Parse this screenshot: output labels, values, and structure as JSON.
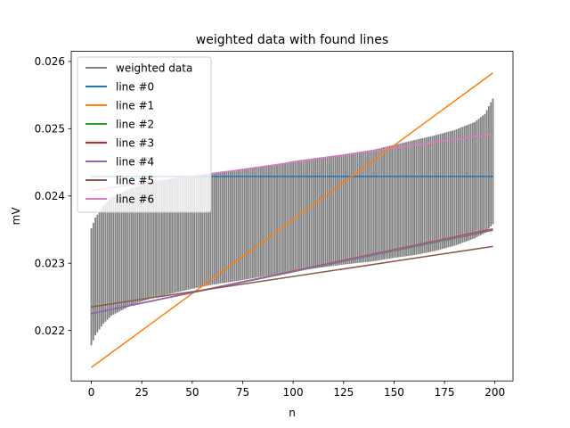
{
  "chart_data": {
    "type": "line",
    "title": "weighted data with found lines",
    "xlabel": "n",
    "ylabel": "mV",
    "xlim": [
      -9.95,
      208.95
    ],
    "ylim": [
      0.02125,
      0.02615
    ],
    "xticks": [
      0,
      25,
      50,
      75,
      100,
      125,
      150,
      175,
      200
    ],
    "yticks": [
      0.022,
      0.023,
      0.024,
      0.025,
      0.026
    ],
    "ytick_labels": [
      "0.022",
      "0.023",
      "0.024",
      "0.025",
      "0.026"
    ],
    "grid": false,
    "legend_position": "upper-left",
    "weighted_data": {
      "name": "weighted data",
      "color": "#808080",
      "n_points": 200,
      "lower": [
        [
          0,
          0.02178
        ],
        [
          2,
          0.02193
        ],
        [
          6,
          0.0221
        ],
        [
          10,
          0.02222
        ],
        [
          20,
          0.02238
        ],
        [
          30,
          0.02248
        ],
        [
          40,
          0.02255
        ],
        [
          50,
          0.02262
        ],
        [
          60,
          0.02268
        ],
        [
          75,
          0.02275
        ],
        [
          90,
          0.02283
        ],
        [
          100,
          0.02288
        ],
        [
          110,
          0.02292
        ],
        [
          125,
          0.02298
        ],
        [
          140,
          0.02303
        ],
        [
          150,
          0.02308
        ],
        [
          160,
          0.02312
        ],
        [
          170,
          0.02318
        ],
        [
          180,
          0.02326
        ],
        [
          190,
          0.02337
        ],
        [
          195,
          0.02345
        ],
        [
          199,
          0.02358
        ]
      ],
      "upper": [
        [
          0,
          0.02352
        ],
        [
          2,
          0.02368
        ],
        [
          6,
          0.02385
        ],
        [
          10,
          0.02398
        ],
        [
          20,
          0.02412
        ],
        [
          30,
          0.0242
        ],
        [
          40,
          0.02426
        ],
        [
          50,
          0.0243
        ],
        [
          60,
          0.02434
        ],
        [
          75,
          0.0244
        ],
        [
          90,
          0.02446
        ],
        [
          100,
          0.02452
        ],
        [
          110,
          0.02456
        ],
        [
          125,
          0.02462
        ],
        [
          140,
          0.02469
        ],
        [
          150,
          0.02476
        ],
        [
          160,
          0.02483
        ],
        [
          170,
          0.0249
        ],
        [
          180,
          0.02498
        ],
        [
          190,
          0.0251
        ],
        [
          195,
          0.02522
        ],
        [
          199,
          0.02545
        ]
      ]
    },
    "series": [
      {
        "name": "line #0",
        "color": "#1f77b4",
        "x": [
          0,
          199
        ],
        "y": [
          0.02429,
          0.02429
        ]
      },
      {
        "name": "line #1",
        "color": "#ff7f0e",
        "x": [
          0,
          199
        ],
        "y": [
          0.02145,
          0.02583
        ]
      },
      {
        "name": "line #2",
        "color": "#2ca02c",
        "x": [
          0,
          199
        ],
        "y": [
          0.02225,
          0.02349
        ]
      },
      {
        "name": "line #3",
        "color": "#d62728",
        "x": [
          0,
          199
        ],
        "y": [
          0.02225,
          0.02351
        ]
      },
      {
        "name": "line #4",
        "color": "#9467bd",
        "x": [
          0,
          199
        ],
        "y": [
          0.02225,
          0.0235
        ]
      },
      {
        "name": "line #5",
        "color": "#8c564b",
        "x": [
          0,
          199
        ],
        "y": [
          0.02235,
          0.02325
        ]
      },
      {
        "name": "line #6",
        "color": "#e377c2",
        "x": [
          0,
          199
        ],
        "y": [
          0.02408,
          0.02492
        ]
      }
    ]
  }
}
